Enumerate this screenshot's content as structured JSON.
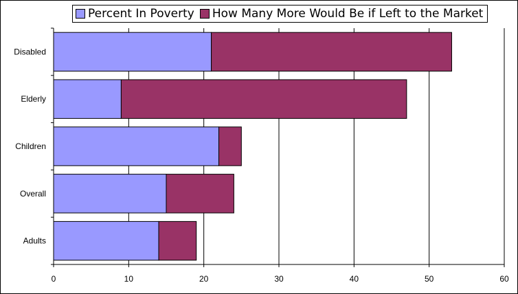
{
  "chart_data": {
    "type": "bar",
    "orientation": "horizontal",
    "stacked": true,
    "categories": [
      "Disabled",
      "Elderly",
      "Children",
      "Overall",
      "Adults"
    ],
    "series": [
      {
        "name": "Percent In Poverty",
        "values": [
          21,
          9,
          22,
          15,
          14
        ],
        "color": "#9999ff"
      },
      {
        "name": "How Many More Would Be if Left to the Market",
        "values": [
          32,
          38,
          3,
          9,
          5
        ],
        "color": "#993366"
      }
    ],
    "xlim": [
      0,
      60
    ],
    "xticks": [
      0,
      10,
      20,
      30,
      40,
      50,
      60
    ],
    "grid": true,
    "legend_position": "top"
  }
}
